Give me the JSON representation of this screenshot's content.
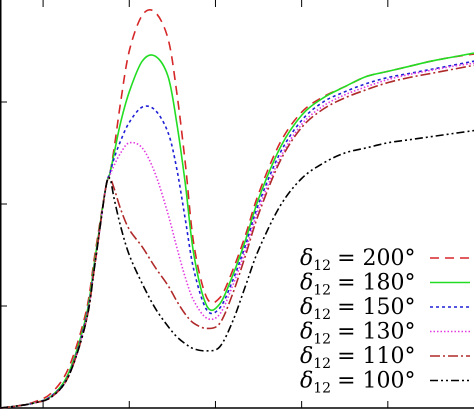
{
  "chart_data": {
    "type": "line",
    "title": "",
    "xlabel": "",
    "ylabel": "",
    "xlim": [
      0,
      11.0
    ],
    "ylim": [
      0,
      4.0
    ],
    "x_ticks": [
      1,
      3,
      5,
      7,
      9
    ],
    "y_ticks": [
      1,
      2,
      3
    ],
    "grid": false,
    "legend_position": "bottom-right",
    "series": [
      {
        "name": "δ12 = 200°",
        "label_var": "δ",
        "label_sub": "12",
        "label_value": "= 200°",
        "color": "#d62728",
        "dash": "9,6",
        "x": [
          0.0,
          0.4,
          0.8,
          1.2,
          1.6,
          2.0,
          2.2,
          2.45,
          2.55,
          2.65,
          2.8,
          3.0,
          3.3,
          3.6,
          3.9,
          4.1,
          4.3,
          4.5,
          4.8,
          5.1,
          5.4,
          5.7,
          6.0,
          6.5,
          7.0,
          7.5,
          8.0,
          8.5,
          9.0,
          9.5,
          10.0,
          10.5,
          11.0
        ],
        "y": [
          0.0,
          0.02,
          0.06,
          0.15,
          0.4,
          0.95,
          1.5,
          2.15,
          2.3,
          2.55,
          3.0,
          3.5,
          3.85,
          3.88,
          3.62,
          3.1,
          2.4,
          1.6,
          1.08,
          1.08,
          1.35,
          1.7,
          2.1,
          2.6,
          2.9,
          3.05,
          3.15,
          3.25,
          3.3,
          3.35,
          3.4,
          3.44,
          3.47
        ]
      },
      {
        "name": "δ12 = 180°",
        "label_var": "δ",
        "label_sub": "12",
        "label_value": "= 180°",
        "color": "#22dd22",
        "dash": "",
        "x": [
          0.0,
          0.4,
          0.8,
          1.2,
          1.6,
          2.0,
          2.2,
          2.45,
          2.55,
          2.65,
          2.8,
          3.0,
          3.3,
          3.6,
          3.9,
          4.1,
          4.3,
          4.5,
          4.8,
          5.1,
          5.4,
          5.7,
          6.0,
          6.5,
          7.0,
          7.5,
          8.0,
          8.5,
          9.0,
          9.5,
          10.0,
          10.5,
          11.0
        ],
        "y": [
          0.0,
          0.02,
          0.05,
          0.12,
          0.35,
          0.9,
          1.45,
          2.15,
          2.3,
          2.5,
          2.8,
          3.1,
          3.4,
          3.45,
          3.25,
          2.8,
          2.2,
          1.5,
          1.0,
          1.02,
          1.3,
          1.65,
          2.05,
          2.55,
          2.87,
          3.04,
          3.15,
          3.25,
          3.3,
          3.35,
          3.4,
          3.44,
          3.48
        ]
      },
      {
        "name": "δ12 = 150°",
        "label_var": "δ",
        "label_sub": "12",
        "label_value": "= 150°",
        "color": "#1f1fd6",
        "dash": "3,3",
        "x": [
          0.0,
          0.4,
          0.8,
          1.2,
          1.6,
          2.0,
          2.2,
          2.45,
          2.55,
          2.65,
          2.8,
          3.0,
          3.3,
          3.6,
          3.9,
          4.1,
          4.3,
          4.5,
          4.8,
          5.1,
          5.4,
          5.7,
          6.0,
          6.5,
          7.0,
          7.5,
          8.0,
          8.5,
          9.0,
          9.5,
          10.0,
          10.5,
          11.0
        ],
        "y": [
          0.0,
          0.02,
          0.05,
          0.12,
          0.33,
          0.88,
          1.42,
          2.15,
          2.3,
          2.45,
          2.62,
          2.8,
          2.95,
          2.92,
          2.7,
          2.35,
          1.85,
          1.35,
          0.96,
          0.98,
          1.25,
          1.6,
          2.0,
          2.5,
          2.82,
          3.0,
          3.1,
          3.18,
          3.24,
          3.28,
          3.32,
          3.36,
          3.4
        ]
      },
      {
        "name": "δ12 = 130°",
        "label_var": "δ",
        "label_sub": "12",
        "label_value": "= 130°",
        "color": "#e23be2",
        "dash": "1.5,2",
        "x": [
          0.0,
          0.4,
          0.8,
          1.2,
          1.6,
          2.0,
          2.2,
          2.45,
          2.55,
          2.65,
          2.8,
          3.0,
          3.3,
          3.6,
          3.9,
          4.1,
          4.3,
          4.5,
          4.8,
          5.1,
          5.4,
          5.7,
          6.0,
          6.5,
          7.0,
          7.5,
          8.0,
          8.5,
          9.0,
          9.5,
          10.0,
          10.5,
          11.0
        ],
        "y": [
          0.0,
          0.02,
          0.05,
          0.11,
          0.32,
          0.86,
          1.4,
          2.15,
          2.28,
          2.38,
          2.5,
          2.6,
          2.55,
          2.3,
          1.9,
          1.58,
          1.28,
          1.05,
          0.88,
          0.92,
          1.2,
          1.55,
          1.95,
          2.45,
          2.78,
          2.96,
          3.07,
          3.15,
          3.22,
          3.27,
          3.31,
          3.35,
          3.38
        ]
      },
      {
        "name": "δ12 = 110°",
        "label_var": "δ",
        "label_sub": "12",
        "label_value": "= 110°",
        "color": "#b02a2a",
        "dash": "10,3,2,3",
        "x": [
          0.0,
          0.4,
          0.8,
          1.2,
          1.6,
          2.0,
          2.2,
          2.45,
          2.55,
          2.65,
          2.8,
          3.0,
          3.3,
          3.6,
          3.9,
          4.1,
          4.3,
          4.5,
          4.8,
          5.1,
          5.4,
          5.7,
          6.0,
          6.5,
          7.0,
          7.5,
          8.0,
          8.5,
          9.0,
          9.5,
          10.0,
          10.5,
          11.0
        ],
        "y": [
          0.0,
          0.02,
          0.05,
          0.11,
          0.32,
          0.85,
          1.4,
          2.15,
          2.25,
          2.15,
          1.95,
          1.75,
          1.58,
          1.38,
          1.2,
          1.05,
          0.92,
          0.83,
          0.78,
          0.83,
          1.12,
          1.5,
          1.9,
          2.42,
          2.75,
          2.93,
          3.04,
          3.12,
          3.19,
          3.24,
          3.28,
          3.32,
          3.36
        ]
      },
      {
        "name": "δ12 = 100°",
        "label_var": "δ",
        "label_sub": "12",
        "label_value": "= 100°",
        "color": "#000000",
        "dash": "8,3,2,3,2,3",
        "x": [
          0.0,
          0.4,
          0.8,
          1.2,
          1.6,
          2.0,
          2.2,
          2.45,
          2.55,
          2.65,
          2.8,
          3.0,
          3.3,
          3.6,
          3.9,
          4.1,
          4.3,
          4.5,
          4.8,
          5.1,
          5.4,
          5.7,
          6.0,
          6.5,
          7.0,
          7.5,
          8.0,
          8.5,
          9.0,
          9.5,
          10.0,
          10.5,
          11.0
        ],
        "y": [
          0.0,
          0.02,
          0.05,
          0.11,
          0.32,
          0.85,
          1.4,
          2.15,
          2.25,
          2.05,
          1.78,
          1.5,
          1.22,
          0.98,
          0.8,
          0.7,
          0.63,
          0.58,
          0.56,
          0.6,
          0.85,
          1.2,
          1.55,
          1.98,
          2.25,
          2.4,
          2.5,
          2.55,
          2.6,
          2.63,
          2.66,
          2.69,
          2.72
        ]
      }
    ]
  }
}
